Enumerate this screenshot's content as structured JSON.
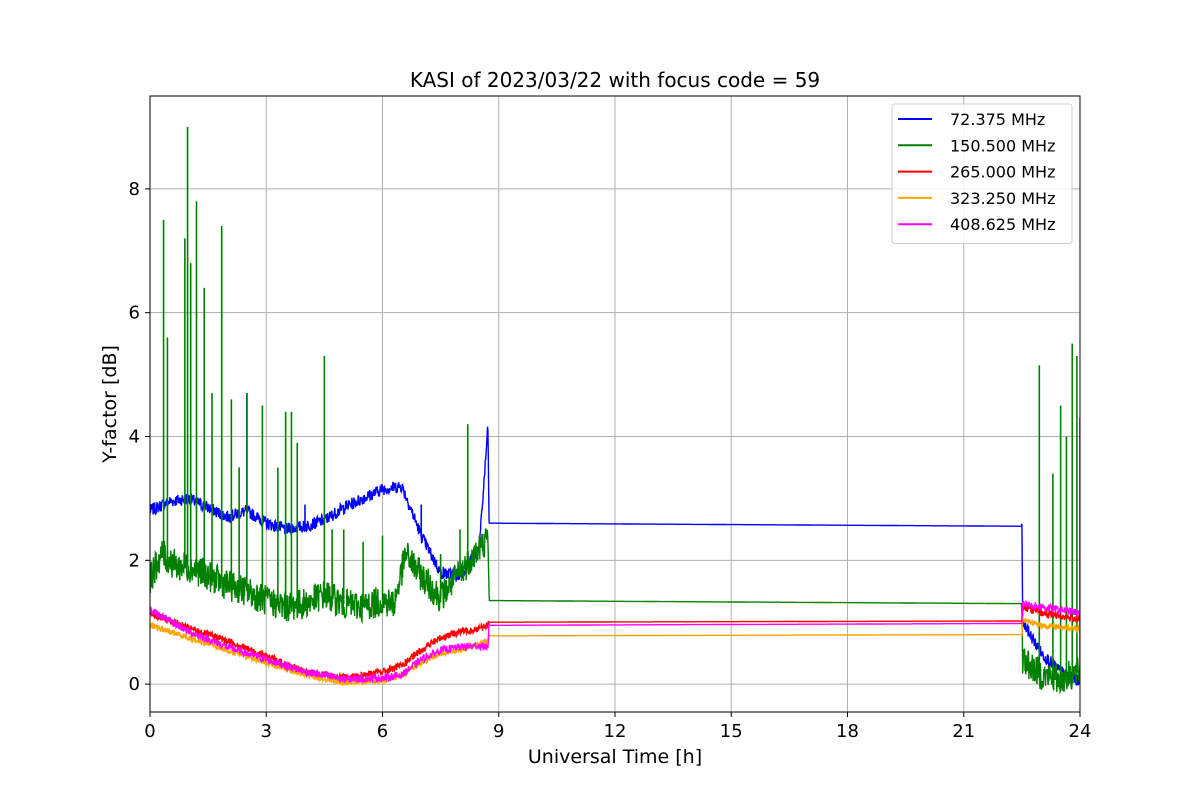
{
  "chart_data": {
    "type": "line",
    "title": "KASI of 2023/03/22 with focus code = 59",
    "xlabel": "Universal Time [h]",
    "ylabel": "Y-factor [dB]",
    "xlim": [
      0,
      24
    ],
    "ylim": [
      -0.45,
      9.5
    ],
    "xticks": [
      0,
      3,
      6,
      9,
      12,
      15,
      18,
      21,
      24
    ],
    "yticks": [
      0,
      2,
      4,
      6,
      8
    ],
    "grid": true,
    "legend_position": "top-right",
    "series": [
      {
        "name": " 72.375 MHz",
        "color": "#0000ff",
        "points": [
          [
            0,
            2.8
          ],
          [
            0.5,
            2.95
          ],
          [
            1.0,
            3.0
          ],
          [
            1.5,
            2.85
          ],
          [
            2.0,
            2.7
          ],
          [
            2.5,
            2.8
          ],
          [
            3.0,
            2.6
          ],
          [
            3.5,
            2.5
          ],
          [
            4.0,
            2.55
          ],
          [
            4.5,
            2.65
          ],
          [
            5.0,
            2.85
          ],
          [
            5.5,
            3.0
          ],
          [
            6.0,
            3.15
          ],
          [
            6.5,
            3.2
          ],
          [
            7.0,
            2.4
          ],
          [
            7.5,
            1.8
          ],
          [
            8.0,
            1.75
          ],
          [
            8.5,
            2.2
          ],
          [
            8.72,
            4.15
          ],
          [
            8.75,
            2.6
          ],
          [
            22.5,
            2.55
          ],
          [
            22.52,
            1.0
          ],
          [
            23.0,
            0.5
          ],
          [
            23.5,
            0.2
          ],
          [
            24.0,
            0.05
          ]
        ],
        "spikes": [
          [
            2.5,
            4.7
          ],
          [
            4.0,
            2.9
          ],
          [
            7.0,
            2.9
          ]
        ],
        "noise": 0.1
      },
      {
        "name": "150.500 MHz",
        "color": "#008000",
        "points": [
          [
            0,
            1.7
          ],
          [
            0.3,
            2.1
          ],
          [
            0.7,
            1.9
          ],
          [
            1.0,
            1.9
          ],
          [
            1.5,
            1.75
          ],
          [
            2.0,
            1.6
          ],
          [
            2.5,
            1.5
          ],
          [
            3.0,
            1.35
          ],
          [
            3.5,
            1.25
          ],
          [
            4.0,
            1.3
          ],
          [
            4.5,
            1.45
          ],
          [
            5.0,
            1.3
          ],
          [
            5.5,
            1.25
          ],
          [
            6.0,
            1.35
          ],
          [
            6.3,
            1.3
          ],
          [
            6.6,
            2.1
          ],
          [
            7.0,
            1.75
          ],
          [
            7.5,
            1.4
          ],
          [
            8.0,
            1.8
          ],
          [
            8.5,
            2.2
          ],
          [
            8.72,
            2.35
          ],
          [
            8.75,
            1.35
          ],
          [
            22.5,
            1.3
          ],
          [
            22.52,
            0.4
          ],
          [
            23.0,
            0.15
          ],
          [
            23.5,
            0.08
          ],
          [
            24.0,
            0.2
          ]
        ],
        "spikes": [
          [
            0.35,
            7.5
          ],
          [
            0.45,
            5.6
          ],
          [
            0.9,
            7.2
          ],
          [
            0.97,
            9.0
          ],
          [
            1.05,
            6.8
          ],
          [
            1.2,
            7.8
          ],
          [
            1.4,
            6.4
          ],
          [
            1.6,
            4.7
          ],
          [
            1.85,
            7.4
          ],
          [
            2.1,
            4.6
          ],
          [
            2.3,
            3.5
          ],
          [
            2.5,
            4.7
          ],
          [
            2.9,
            4.5
          ],
          [
            3.3,
            3.5
          ],
          [
            3.5,
            4.4
          ],
          [
            3.65,
            4.4
          ],
          [
            3.8,
            3.9
          ],
          [
            4.5,
            5.3
          ],
          [
            4.7,
            2.5
          ],
          [
            5.0,
            2.5
          ],
          [
            5.5,
            2.3
          ],
          [
            6.0,
            2.4
          ],
          [
            7.5,
            2.1
          ],
          [
            8.0,
            2.5
          ],
          [
            8.2,
            4.2
          ],
          [
            22.95,
            5.15
          ],
          [
            23.3,
            3.4
          ],
          [
            23.5,
            4.5
          ],
          [
            23.65,
            4.0
          ],
          [
            23.8,
            5.5
          ],
          [
            23.92,
            5.3
          ],
          [
            24.0,
            4.3
          ]
        ],
        "noise": 0.25
      },
      {
        "name": "265.000 MHz",
        "color": "#ff0000",
        "points": [
          [
            0,
            1.15
          ],
          [
            1.0,
            0.9
          ],
          [
            2.0,
            0.7
          ],
          [
            3.0,
            0.45
          ],
          [
            4.0,
            0.2
          ],
          [
            5.0,
            0.1
          ],
          [
            5.5,
            0.15
          ],
          [
            6.0,
            0.2
          ],
          [
            6.5,
            0.3
          ],
          [
            7.0,
            0.55
          ],
          [
            7.5,
            0.75
          ],
          [
            8.0,
            0.85
          ],
          [
            8.5,
            0.9
          ],
          [
            8.72,
            0.95
          ],
          [
            8.75,
            1.0
          ],
          [
            22.5,
            1.02
          ],
          [
            22.52,
            1.25
          ],
          [
            23.0,
            1.15
          ],
          [
            24.0,
            1.05
          ]
        ],
        "spikes": [],
        "noise": 0.06
      },
      {
        "name": "323.250 MHz",
        "color": "#ffa500",
        "points": [
          [
            0,
            0.95
          ],
          [
            1.0,
            0.75
          ],
          [
            2.0,
            0.55
          ],
          [
            3.0,
            0.35
          ],
          [
            4.0,
            0.15
          ],
          [
            5.0,
            0.03
          ],
          [
            6.0,
            0.05
          ],
          [
            6.5,
            0.15
          ],
          [
            7.0,
            0.35
          ],
          [
            7.5,
            0.5
          ],
          [
            8.0,
            0.55
          ],
          [
            8.5,
            0.65
          ],
          [
            8.72,
            0.7
          ],
          [
            8.75,
            0.78
          ],
          [
            22.5,
            0.8
          ],
          [
            22.52,
            1.05
          ],
          [
            23.0,
            0.95
          ],
          [
            24.0,
            0.9
          ]
        ],
        "spikes": [],
        "noise": 0.05
      },
      {
        "name": "408.625 MHz",
        "color": "#ff00ff",
        "points": [
          [
            0,
            1.2
          ],
          [
            1.0,
            0.85
          ],
          [
            2.0,
            0.6
          ],
          [
            3.0,
            0.4
          ],
          [
            4.0,
            0.2
          ],
          [
            5.0,
            0.08
          ],
          [
            6.0,
            0.1
          ],
          [
            6.5,
            0.15
          ],
          [
            7.0,
            0.4
          ],
          [
            7.5,
            0.55
          ],
          [
            8.0,
            0.6
          ],
          [
            8.5,
            0.62
          ],
          [
            8.72,
            0.6
          ],
          [
            8.75,
            0.95
          ],
          [
            22.5,
            0.98
          ],
          [
            22.52,
            1.3
          ],
          [
            23.0,
            1.25
          ],
          [
            24.0,
            1.15
          ]
        ],
        "spikes": [],
        "noise": 0.06
      }
    ]
  }
}
